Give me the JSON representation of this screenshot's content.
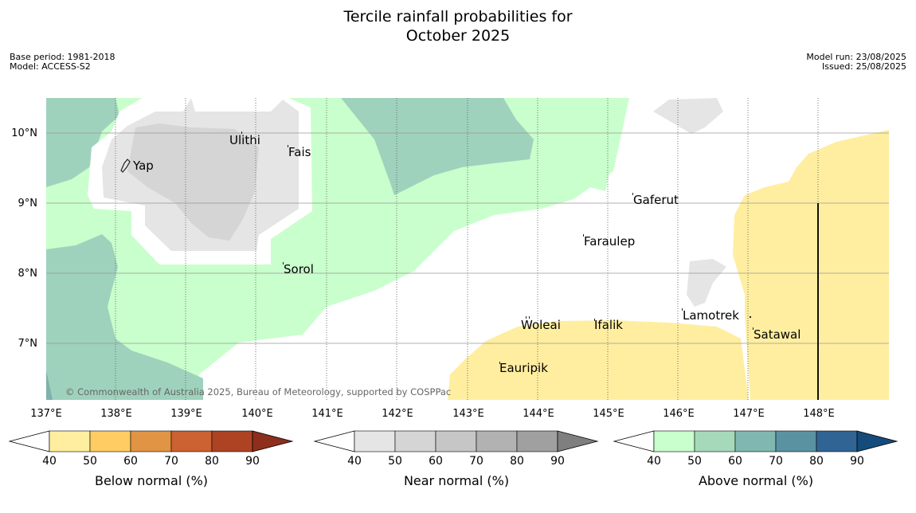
{
  "header": {
    "title_line1": "Tercile rainfall probabilities for",
    "title_line2": "October 2025",
    "base_period": "Base period: 1981-2018",
    "model": "Model: ACCESS-S2",
    "model_run": "Model run: 23/08/2025",
    "issued": "Issued: 25/08/2025"
  },
  "map": {
    "lon_ticks": [
      "137°E",
      "138°E",
      "139°E",
      "140°E",
      "141°E",
      "142°E",
      "143°E",
      "144°E",
      "145°E",
      "146°E",
      "147°E",
      "148°E"
    ],
    "lat_ticks": [
      "10°N",
      "9°N",
      "8°N",
      "7°N"
    ],
    "places": [
      {
        "name": "Yap"
      },
      {
        "name": "Ulithi"
      },
      {
        "name": "Fais"
      },
      {
        "name": "Sorol"
      },
      {
        "name": "Gaferut"
      },
      {
        "name": "Faraulep"
      },
      {
        "name": "Woleai"
      },
      {
        "name": "Ifalik"
      },
      {
        "name": "Lamotrek"
      },
      {
        "name": "Satawal"
      },
      {
        "name": "Eauripik"
      }
    ],
    "copyright": "© Commonwealth of Australia 2025, Bureau of Meteorology, supported by COSPPac"
  },
  "legend": {
    "ticks": [
      "40",
      "50",
      "60",
      "70",
      "80",
      "90"
    ],
    "bars": [
      {
        "title": "Below normal (%)",
        "colors": [
          "#ffeea0",
          "#fecc62",
          "#e19443",
          "#cc6131",
          "#ad4323",
          "#8e2e1d"
        ]
      },
      {
        "title": "Near normal (%)",
        "colors": [
          "#e5e5e5",
          "#d5d5d5",
          "#c6c6c6",
          "#b2b2b2",
          "#a0a0a0",
          "#7f7f7f"
        ]
      },
      {
        "title": "Above normal (%)",
        "colors": [
          "#c9ffcc",
          "#a5d9ba",
          "#80b7b1",
          "#5a92a2",
          "#306494",
          "#144b7b"
        ]
      }
    ]
  },
  "colors": {
    "above_40": "#c9ffcc",
    "above_50": "#9fd2bc",
    "above_60": "#7fb1ad",
    "near_40": "#e5e5e5",
    "near_50": "#d5d5d5",
    "below_40": "#ffeea0"
  }
}
